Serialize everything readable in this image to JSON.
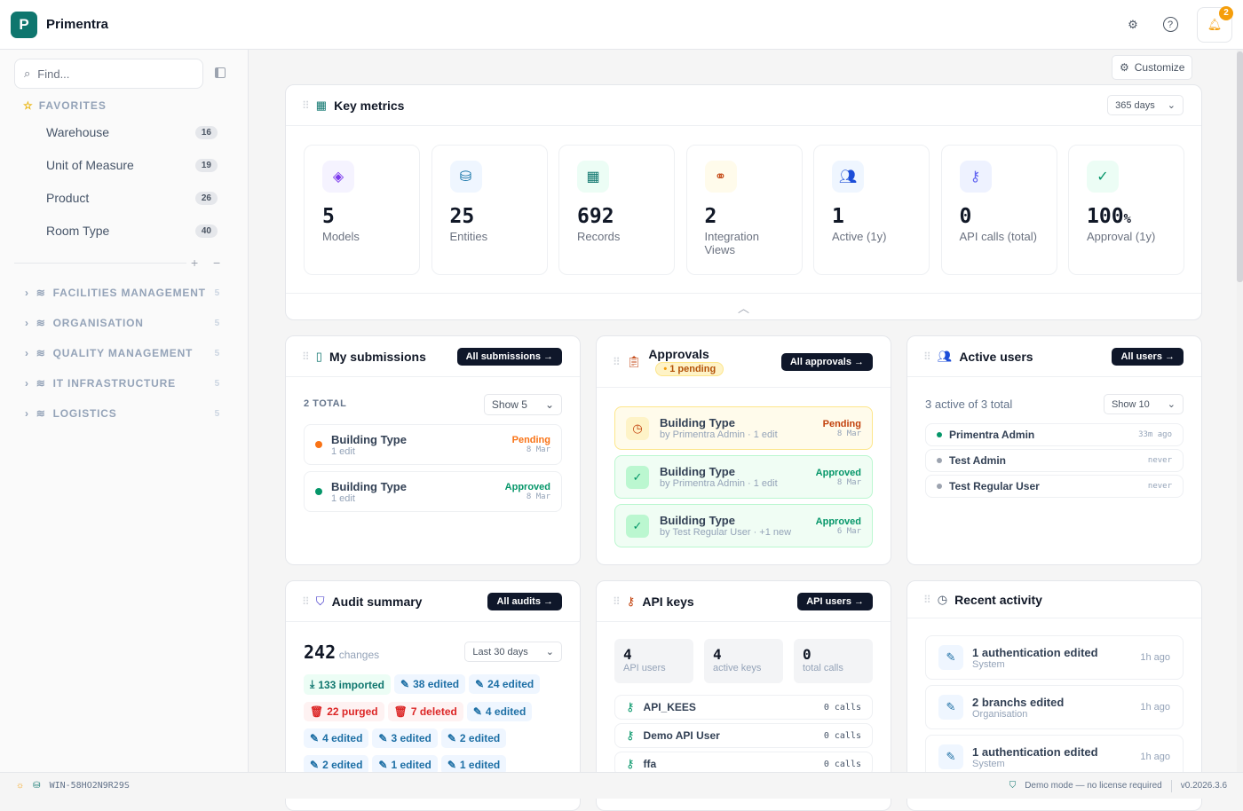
{
  "app": {
    "logo_letter": "P",
    "name": "Primentra",
    "notifications": "2"
  },
  "sidebar": {
    "search_placeholder": "Find...",
    "favorites_label": "FAVORITES",
    "favorites": [
      {
        "label": "Warehouse",
        "count": "16"
      },
      {
        "label": "Unit of Measure",
        "count": "19"
      },
      {
        "label": "Product",
        "count": "26"
      },
      {
        "label": "Room Type",
        "count": "40"
      }
    ],
    "groups": [
      {
        "label": "FACILITIES MANAGEMENT",
        "count": "5"
      },
      {
        "label": "ORGANISATION",
        "count": "5"
      },
      {
        "label": "QUALITY MANAGEMENT",
        "count": "5"
      },
      {
        "label": "IT INFRASTRUCTURE",
        "count": "5"
      },
      {
        "label": "LOGISTICS",
        "count": "5"
      }
    ]
  },
  "customize_label": "Customize",
  "key_metrics": {
    "title": "Key metrics",
    "range": "365 days",
    "metrics": [
      {
        "value": "5",
        "label": "Models",
        "icon": "layers-icon",
        "color": "#7c3aed",
        "bg": "#f5f3ff"
      },
      {
        "value": "25",
        "label": "Entities",
        "icon": "database-icon",
        "color": "#0369a1",
        "bg": "#eff6ff"
      },
      {
        "value": "692",
        "label": "Records",
        "icon": "grid-icon",
        "color": "#0f766e",
        "bg": "#ecfdf5"
      },
      {
        "value": "2",
        "label": "Integration Views",
        "icon": "link-icon",
        "color": "#c2410c",
        "bg": "#fffbeb"
      },
      {
        "value": "1",
        "label": "Active (1y)",
        "icon": "users-icon",
        "color": "#1d4ed8",
        "bg": "#eff6ff"
      },
      {
        "value": "0",
        "label": "API calls (total)",
        "icon": "key-icon",
        "color": "#6366f1",
        "bg": "#eef2ff"
      },
      {
        "value": "100",
        "unit": "%",
        "label": "Approval (1y)",
        "icon": "check-circle-icon",
        "color": "#059669",
        "bg": "#ecfdf5"
      }
    ]
  },
  "submissions": {
    "title": "My submissions",
    "button": "All submissions →",
    "total": "2 TOTAL",
    "show": "Show 5",
    "items": [
      {
        "title": "Building Type",
        "sub": "1 edit",
        "status": "Pending",
        "date": "8 Mar",
        "color": "#f97316"
      },
      {
        "title": "Building Type",
        "sub": "1 edit",
        "status": "Approved",
        "date": "8 Mar",
        "color": "#059669"
      }
    ]
  },
  "approvals": {
    "title": "Approvals",
    "pending_badge": "1 pending",
    "button": "All approvals →",
    "items": [
      {
        "title": "Building Type",
        "sub": "by Primentra Admin · 1 edit",
        "status": "Pending",
        "date": "8 Mar",
        "kind": "pending"
      },
      {
        "title": "Building Type",
        "sub": "by Primentra Admin · 1 edit",
        "status": "Approved",
        "date": "8 Mar",
        "kind": "approved"
      },
      {
        "title": "Building Type",
        "sub": "by Test Regular User · +1 new",
        "status": "Approved",
        "date": "6 Mar",
        "kind": "approved"
      }
    ]
  },
  "active_users": {
    "title": "Active users",
    "button": "All users →",
    "summary": "3 active of 3 total",
    "show": "Show 10",
    "items": [
      {
        "name": "Primentra Admin",
        "last": "33m ago",
        "active": true
      },
      {
        "name": "Test Admin",
        "last": "never",
        "active": false
      },
      {
        "name": "Test Regular User",
        "last": "never",
        "active": false
      }
    ]
  },
  "audit": {
    "title": "Audit summary",
    "button": "All audits →",
    "total": "242",
    "total_label": "changes",
    "range": "Last 30 days",
    "chips": [
      {
        "label": "133 imported",
        "kind": "g",
        "icon": "download-icon"
      },
      {
        "label": "38 edited",
        "kind": "b",
        "icon": "edit-icon"
      },
      {
        "label": "24 edited",
        "kind": "b",
        "icon": "edit-icon"
      },
      {
        "label": "22 purged",
        "kind": "r",
        "icon": "trash-icon"
      },
      {
        "label": "7 deleted",
        "kind": "r",
        "icon": "trash-icon"
      },
      {
        "label": "4 edited",
        "kind": "b",
        "icon": "edit-icon"
      },
      {
        "label": "4 edited",
        "kind": "b",
        "icon": "edit-icon"
      },
      {
        "label": "3 edited",
        "kind": "b",
        "icon": "edit-icon"
      },
      {
        "label": "2 edited",
        "kind": "b",
        "icon": "edit-icon"
      },
      {
        "label": "2 edited",
        "kind": "b",
        "icon": "edit-icon"
      },
      {
        "label": "1 edited",
        "kind": "b",
        "icon": "edit-icon"
      },
      {
        "label": "1 edited",
        "kind": "b",
        "icon": "edit-icon"
      }
    ]
  },
  "api_keys": {
    "title": "API keys",
    "button": "API users →",
    "stats": [
      {
        "value": "4",
        "label": "API users"
      },
      {
        "value": "4",
        "label": "active keys"
      },
      {
        "value": "0",
        "label": "total calls"
      }
    ],
    "items": [
      {
        "name": "API_KEES",
        "calls": "0 calls"
      },
      {
        "name": "Demo API User",
        "calls": "0 calls"
      },
      {
        "name": "ffa",
        "calls": "0 calls"
      }
    ]
  },
  "recent": {
    "title": "Recent activity",
    "items": [
      {
        "title": "1 authentication edited",
        "sub": "System",
        "time": "1h ago"
      },
      {
        "title": "2 branchs edited",
        "sub": "Organisation",
        "time": "1h ago"
      },
      {
        "title": "1 authentication edited",
        "sub": "System",
        "time": "1h ago"
      }
    ]
  },
  "footer": {
    "host": "WIN-58HO2N9R29S",
    "demo": "Demo mode — no license required",
    "version": "v0.2026.3.6"
  }
}
